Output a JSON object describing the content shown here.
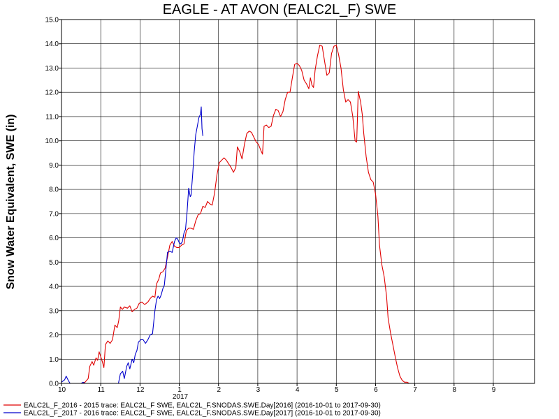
{
  "chart_data": {
    "type": "line",
    "title": "EAGLE - AT AVON (EALC2L_F) SWE",
    "xlabel": "",
    "ylabel": "Snow Water Equivalent, SWE (in)",
    "xlim": [
      0,
      12.05
    ],
    "ylim": [
      0,
      15
    ],
    "grid": true,
    "year_marker": "2017",
    "x_ticks": [
      {
        "x": 0,
        "label": "10"
      },
      {
        "x": 1,
        "label": "11"
      },
      {
        "x": 2,
        "label": "12"
      },
      {
        "x": 3,
        "label": "1"
      },
      {
        "x": 4,
        "label": "2"
      },
      {
        "x": 5,
        "label": "3"
      },
      {
        "x": 6,
        "label": "4"
      },
      {
        "x": 7,
        "label": "5"
      },
      {
        "x": 8,
        "label": "6"
      },
      {
        "x": 9,
        "label": "7"
      },
      {
        "x": 10,
        "label": "8"
      },
      {
        "x": 11,
        "label": "9"
      }
    ],
    "y_ticks": [
      "0.0",
      "1.0",
      "2.0",
      "3.0",
      "4.0",
      "5.0",
      "6.0",
      "7.0",
      "8.0",
      "9.0",
      "10.0",
      "11.0",
      "12.0",
      "13.0",
      "14.0",
      "15.0"
    ],
    "legend_position": "bottom-left",
    "series": [
      {
        "name": "EALC2L_F_2016 - 2015 trace: EALC2L_F SWE, EALC2L_F.SNODAS.SWE.Day[2016] (2016-10-01 to 2017-09-30)",
        "color": "#e00000",
        "points": [
          [
            0.0,
            0
          ],
          [
            0.5,
            0
          ],
          [
            0.6,
            0.05
          ],
          [
            0.68,
            0.2
          ],
          [
            0.72,
            0.7
          ],
          [
            0.78,
            0.9
          ],
          [
            0.82,
            0.75
          ],
          [
            0.88,
            1.05
          ],
          [
            0.92,
            0.95
          ],
          [
            0.96,
            1.3
          ],
          [
            1.0,
            1.1
          ],
          [
            1.04,
            0.9
          ],
          [
            1.08,
            0.65
          ],
          [
            1.12,
            1.6
          ],
          [
            1.18,
            1.75
          ],
          [
            1.24,
            1.65
          ],
          [
            1.3,
            1.8
          ],
          [
            1.36,
            2.4
          ],
          [
            1.42,
            2.3
          ],
          [
            1.46,
            2.6
          ],
          [
            1.5,
            3.15
          ],
          [
            1.55,
            3.05
          ],
          [
            1.6,
            3.15
          ],
          [
            1.68,
            3.1
          ],
          [
            1.74,
            3.2
          ],
          [
            1.8,
            2.95
          ],
          [
            1.86,
            3.05
          ],
          [
            1.92,
            3.1
          ],
          [
            1.98,
            3.3
          ],
          [
            2.05,
            3.35
          ],
          [
            2.12,
            3.25
          ],
          [
            2.2,
            3.35
          ],
          [
            2.26,
            3.5
          ],
          [
            2.32,
            3.6
          ],
          [
            2.38,
            3.55
          ],
          [
            2.42,
            4.1
          ],
          [
            2.48,
            4.3
          ],
          [
            2.52,
            4.55
          ],
          [
            2.58,
            4.6
          ],
          [
            2.64,
            4.75
          ],
          [
            2.7,
            5.2
          ],
          [
            2.76,
            5.7
          ],
          [
            2.82,
            5.85
          ],
          [
            2.88,
            5.65
          ],
          [
            2.94,
            5.6
          ],
          [
            3.0,
            5.6
          ],
          [
            3.06,
            5.7
          ],
          [
            3.12,
            5.75
          ],
          [
            3.18,
            6.3
          ],
          [
            3.24,
            6.4
          ],
          [
            3.3,
            6.4
          ],
          [
            3.36,
            6.35
          ],
          [
            3.42,
            6.7
          ],
          [
            3.48,
            6.95
          ],
          [
            3.54,
            7.0
          ],
          [
            3.6,
            7.3
          ],
          [
            3.66,
            7.25
          ],
          [
            3.72,
            7.5
          ],
          [
            3.78,
            7.4
          ],
          [
            3.84,
            7.35
          ],
          [
            3.9,
            7.85
          ],
          [
            3.96,
            8.6
          ],
          [
            4.02,
            9.1
          ],
          [
            4.08,
            9.2
          ],
          [
            4.14,
            9.3
          ],
          [
            4.2,
            9.2
          ],
          [
            4.26,
            9.05
          ],
          [
            4.32,
            8.9
          ],
          [
            4.38,
            8.7
          ],
          [
            4.44,
            8.9
          ],
          [
            4.48,
            9.75
          ],
          [
            4.54,
            9.55
          ],
          [
            4.6,
            9.25
          ],
          [
            4.66,
            9.85
          ],
          [
            4.72,
            10.3
          ],
          [
            4.78,
            10.4
          ],
          [
            4.84,
            10.35
          ],
          [
            4.9,
            10.15
          ],
          [
            4.96,
            9.95
          ],
          [
            5.02,
            9.85
          ],
          [
            5.08,
            9.6
          ],
          [
            5.12,
            9.45
          ],
          [
            5.16,
            10.6
          ],
          [
            5.22,
            10.65
          ],
          [
            5.28,
            10.55
          ],
          [
            5.34,
            10.6
          ],
          [
            5.4,
            11.05
          ],
          [
            5.46,
            11.3
          ],
          [
            5.52,
            11.25
          ],
          [
            5.58,
            11.0
          ],
          [
            5.64,
            11.2
          ],
          [
            5.7,
            11.7
          ],
          [
            5.76,
            12.0
          ],
          [
            5.82,
            12.0
          ],
          [
            5.88,
            12.6
          ],
          [
            5.94,
            13.15
          ],
          [
            6.0,
            13.2
          ],
          [
            6.06,
            13.1
          ],
          [
            6.12,
            12.9
          ],
          [
            6.18,
            12.5
          ],
          [
            6.24,
            12.35
          ],
          [
            6.3,
            12.15
          ],
          [
            6.34,
            12.6
          ],
          [
            6.38,
            12.3
          ],
          [
            6.42,
            12.2
          ],
          [
            6.46,
            12.9
          ],
          [
            6.52,
            13.5
          ],
          [
            6.58,
            13.95
          ],
          [
            6.64,
            13.9
          ],
          [
            6.7,
            13.3
          ],
          [
            6.76,
            12.7
          ],
          [
            6.82,
            12.8
          ],
          [
            6.88,
            13.6
          ],
          [
            6.94,
            13.9
          ],
          [
            7.0,
            13.95
          ],
          [
            7.06,
            13.55
          ],
          [
            7.12,
            13.0
          ],
          [
            7.18,
            12.1
          ],
          [
            7.24,
            11.6
          ],
          [
            7.3,
            11.7
          ],
          [
            7.36,
            11.6
          ],
          [
            7.42,
            11.0
          ],
          [
            7.48,
            10.0
          ],
          [
            7.52,
            9.95
          ],
          [
            7.56,
            12.05
          ],
          [
            7.62,
            11.6
          ],
          [
            7.66,
            11.1
          ],
          [
            7.7,
            10.3
          ],
          [
            7.76,
            9.35
          ],
          [
            7.82,
            8.7
          ],
          [
            7.88,
            8.4
          ],
          [
            7.94,
            8.3
          ],
          [
            8.0,
            7.8
          ],
          [
            8.06,
            6.9
          ],
          [
            8.1,
            5.7
          ],
          [
            8.16,
            4.9
          ],
          [
            8.22,
            4.4
          ],
          [
            8.28,
            3.6
          ],
          [
            8.32,
            2.7
          ],
          [
            8.38,
            2.1
          ],
          [
            8.44,
            1.6
          ],
          [
            8.5,
            1.1
          ],
          [
            8.56,
            0.65
          ],
          [
            8.62,
            0.3
          ],
          [
            8.68,
            0.12
          ],
          [
            8.74,
            0.05
          ],
          [
            8.8,
            0.05
          ],
          [
            8.86,
            0
          ],
          [
            12.0,
            0
          ]
        ]
      },
      {
        "name": "EALC2L_F_2017 - 2016 trace: EALC2L_F SWE, EALC2L_F.SNODAS.SWE.Day[2017] (2016-10-01 to 2017-09-30)",
        "color": "#0000cc",
        "points": [
          [
            0.0,
            0.05
          ],
          [
            0.08,
            0.15
          ],
          [
            0.12,
            0.3
          ],
          [
            0.18,
            0.1
          ],
          [
            0.22,
            0
          ],
          [
            0.5,
            0
          ],
          [
            0.55,
            0.05
          ],
          [
            0.6,
            0
          ],
          [
            1.45,
            0
          ],
          [
            1.5,
            0.4
          ],
          [
            1.56,
            0.5
          ],
          [
            1.6,
            0.2
          ],
          [
            1.66,
            0.7
          ],
          [
            1.7,
            0.85
          ],
          [
            1.74,
            0.6
          ],
          [
            1.8,
            1.0
          ],
          [
            1.84,
            0.85
          ],
          [
            1.88,
            1.2
          ],
          [
            1.92,
            1.35
          ],
          [
            1.96,
            1.7
          ],
          [
            2.02,
            1.8
          ],
          [
            2.08,
            1.8
          ],
          [
            2.14,
            1.65
          ],
          [
            2.2,
            1.8
          ],
          [
            2.26,
            2.0
          ],
          [
            2.32,
            2.05
          ],
          [
            2.38,
            3.0
          ],
          [
            2.42,
            3.45
          ],
          [
            2.46,
            3.6
          ],
          [
            2.5,
            3.5
          ],
          [
            2.54,
            3.65
          ],
          [
            2.58,
            3.9
          ],
          [
            2.62,
            4.05
          ],
          [
            2.66,
            4.7
          ],
          [
            2.7,
            5.4
          ],
          [
            2.76,
            5.45
          ],
          [
            2.82,
            5.4
          ],
          [
            2.88,
            5.85
          ],
          [
            2.92,
            6.0
          ],
          [
            2.96,
            5.95
          ],
          [
            3.0,
            5.8
          ],
          [
            3.04,
            5.75
          ],
          [
            3.08,
            5.85
          ],
          [
            3.12,
            6.2
          ],
          [
            3.16,
            6.35
          ],
          [
            3.2,
            7.1
          ],
          [
            3.24,
            8.05
          ],
          [
            3.28,
            7.7
          ],
          [
            3.3,
            7.75
          ],
          [
            3.34,
            8.55
          ],
          [
            3.38,
            9.55
          ],
          [
            3.42,
            10.25
          ],
          [
            3.46,
            10.6
          ],
          [
            3.5,
            10.95
          ],
          [
            3.54,
            11.1
          ],
          [
            3.56,
            11.4
          ],
          [
            3.58,
            10.5
          ],
          [
            3.6,
            10.2
          ]
        ]
      }
    ]
  }
}
